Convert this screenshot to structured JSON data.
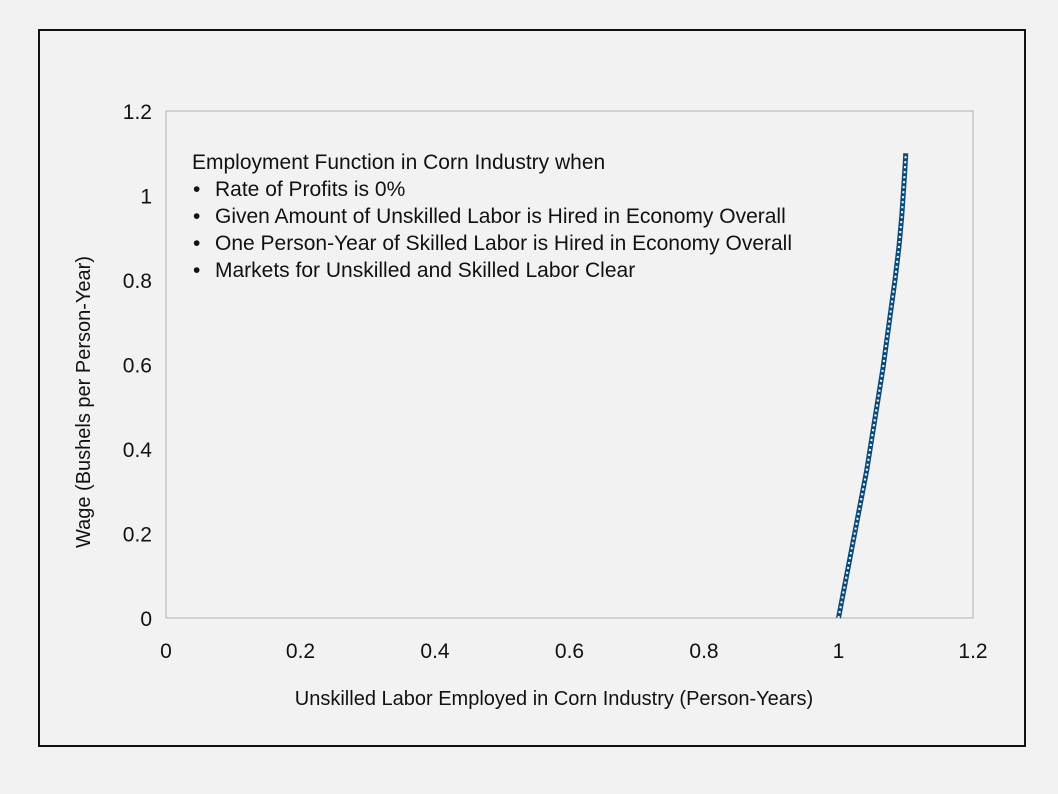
{
  "chart_data": {
    "type": "line",
    "title": "",
    "xlabel": "Unskilled Labor Employed in Corn Industry (Person-Years)",
    "ylabel": "Wage (Bushels per Person-Year)",
    "xlim": [
      0,
      1.2
    ],
    "ylim": [
      0,
      1.2
    ],
    "x_ticks": [
      "0",
      "0.2",
      "0.4",
      "0.6",
      "0.8",
      "1",
      "1.2"
    ],
    "y_ticks": [
      "0",
      "0.2",
      "0.4",
      "0.6",
      "0.8",
      "1",
      "1.2"
    ],
    "grid": false,
    "legend": "none",
    "annotation": {
      "heading": "Employment Function in Corn Industry when",
      "bullets": [
        "Rate of Profits is 0%",
        "Given Amount of Unskilled Labor is Hired in Economy Overall",
        "One Person-Year of Skilled Labor is Hired in Economy Overall",
        "Markets for Unskilled and Skilled Labor Clear"
      ]
    },
    "series": [
      {
        "color": "#0b4a7d",
        "x": [
          1.0,
          1.006,
          1.012,
          1.018,
          1.024,
          1.03,
          1.036,
          1.042,
          1.048,
          1.054,
          1.06,
          1.066,
          1.072,
          1.078,
          1.084,
          1.09,
          1.094,
          1.097,
          1.099,
          1.1
        ],
        "y": [
          0.0,
          0.05,
          0.1,
          0.15,
          0.2,
          0.25,
          0.3,
          0.35,
          0.41,
          0.47,
          0.53,
          0.59,
          0.66,
          0.73,
          0.8,
          0.88,
          0.95,
          1.02,
          1.07,
          1.1
        ]
      }
    ]
  }
}
